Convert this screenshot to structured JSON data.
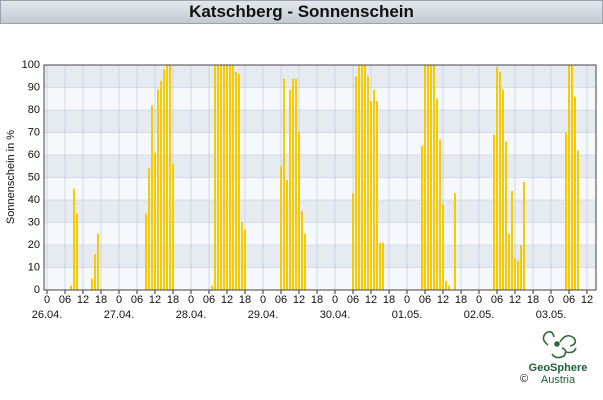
{
  "chart_data": {
    "type": "bar",
    "title": "Katschberg - Sonnenschein",
    "y_label": "Sonnenschein in %",
    "color": "#f5cc00",
    "grid": true,
    "x": [
      8,
      9,
      10,
      15,
      16,
      17,
      33,
      34,
      35,
      36,
      37,
      38,
      39,
      40,
      41,
      42,
      55,
      56,
      57,
      58,
      59,
      60,
      61,
      62,
      63,
      64,
      65,
      66,
      78,
      79,
      80,
      81,
      82,
      83,
      84,
      85,
      86,
      102,
      103,
      104,
      105,
      106,
      107,
      108,
      109,
      110,
      111,
      112,
      125,
      126,
      127,
      128,
      129,
      130,
      131,
      132,
      133,
      134,
      136,
      149,
      150,
      151,
      152,
      153,
      154,
      155,
      156,
      157,
      158,
      159,
      173,
      174,
      175,
      176,
      177
    ],
    "values": [
      2,
      45,
      34,
      5,
      16,
      25,
      34,
      54,
      82,
      61,
      89,
      93,
      98,
      100,
      100,
      56,
      2,
      100,
      100,
      100,
      100,
      100,
      100,
      100,
      97,
      96,
      30,
      27,
      55,
      94,
      49,
      89,
      94,
      94,
      70,
      35,
      25,
      43,
      95,
      100,
      100,
      100,
      95,
      84,
      89,
      84,
      21,
      21,
      64,
      100,
      100,
      100,
      100,
      85,
      67,
      38,
      4,
      2,
      43,
      69,
      99,
      97,
      89,
      66,
      25,
      44,
      14,
      13,
      20,
      48,
      70,
      100,
      100,
      86,
      62
    ],
    "xlim": [
      -1,
      183
    ],
    "ylim": [
      0,
      100
    ],
    "yticks": [
      0,
      10,
      20,
      30,
      40,
      50,
      60,
      70,
      80,
      90,
      100
    ],
    "xticks": [
      0,
      {
        "value": 6,
        "label": "06"
      },
      {
        "value": 12,
        "label": "12"
      },
      {
        "value": 18,
        "label": "18"
      },
      {
        "value": 24,
        "label": "0"
      },
      {
        "value": 30,
        "label": "06"
      },
      {
        "value": 36,
        "label": "12"
      },
      {
        "value": 42,
        "label": "18"
      },
      {
        "value": 48,
        "label": "0"
      },
      {
        "value": 54,
        "label": "06"
      },
      {
        "value": 60,
        "label": "12"
      },
      {
        "value": 66,
        "label": "18"
      },
      {
        "value": 72,
        "label": "0"
      },
      {
        "value": 78,
        "label": "06"
      },
      {
        "value": 84,
        "label": "12"
      },
      {
        "value": 90,
        "label": "18"
      },
      {
        "value": 96,
        "label": "0"
      },
      {
        "value": 102,
        "label": "06"
      },
      {
        "value": 108,
        "label": "12"
      },
      {
        "value": 114,
        "label": "18"
      },
      {
        "value": 120,
        "label": "0"
      },
      {
        "value": 126,
        "label": "06"
      },
      {
        "value": 132,
        "label": "12"
      },
      {
        "value": 138,
        "label": "18"
      },
      {
        "value": 144,
        "label": "0"
      },
      {
        "value": 150,
        "label": "06"
      },
      {
        "value": 156,
        "label": "12"
      },
      {
        "value": 162,
        "label": "18"
      },
      {
        "value": 168,
        "label": "0"
      },
      {
        "value": 174,
        "label": "06"
      },
      {
        "value": 180,
        "label": "12"
      }
    ],
    "date_ticks": [
      {
        "value": 0,
        "label": "26.04."
      },
      {
        "value": 24,
        "label": "27.04."
      },
      {
        "value": 48,
        "label": "28.04."
      },
      {
        "value": 72,
        "label": "29.04."
      },
      {
        "value": 96,
        "label": "30.04."
      },
      {
        "value": 120,
        "label": "01.05."
      },
      {
        "value": 144,
        "label": "02.05."
      },
      {
        "value": 168,
        "label": "03.05."
      }
    ]
  },
  "footer": {
    "copyright": "©",
    "brand": "GeoSphere",
    "brand_sub": "Austria"
  }
}
